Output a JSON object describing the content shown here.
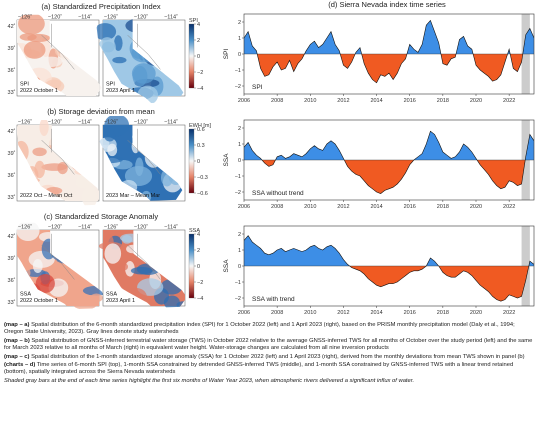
{
  "maps": {
    "a": {
      "title": "(a) Standardized Precipitation Index",
      "left_label": [
        "SPI",
        "2022 October 1"
      ],
      "right_label": [
        "SPI",
        "2023 April 1"
      ],
      "colorbar": {
        "title": "SPI",
        "ticks": [
          "4",
          "2",
          "0",
          "−2",
          "−4"
        ]
      }
    },
    "b": {
      "title": "(b) Storage deviation from mean",
      "left_label": [
        "2022 Oct – Mean Oct"
      ],
      "right_label": [
        "2023 Mar – Mean Mar"
      ],
      "colorbar": {
        "title": "EWH [m]",
        "ticks": [
          "0.6",
          "0.3",
          "0",
          "−0.3",
          "−0.6"
        ]
      }
    },
    "c": {
      "title": "(c) Standardized Storage Anomaly",
      "left_label": [
        "SSA",
        "2022 October 1"
      ],
      "right_label": [
        "SSA",
        "2023 April 1"
      ],
      "colorbar": {
        "title": "SSA",
        "ticks": [
          "4",
          "2",
          "0",
          "−2",
          "−4"
        ]
      }
    },
    "lon_ticks": [
      "−126˚",
      "−120˚",
      "−114˚"
    ],
    "lat_ticks": [
      "42˚",
      "39˚",
      "36˚",
      "33˚"
    ]
  },
  "timeseries_title": "(d) Sierra Nevada index time series",
  "chart_data": [
    {
      "type": "area",
      "label": "SPI",
      "ylabel": "SPI",
      "x_range": [
        2006,
        2023.5
      ],
      "ylim": [
        -2.5,
        2.5
      ],
      "yticks": [
        2,
        1,
        0,
        -1,
        -2
      ],
      "x_ticks": [
        "2006",
        "2008",
        "2010",
        "2012",
        "2014",
        "2016",
        "2018",
        "2020",
        "2022"
      ],
      "shaded_period": [
        2022.75,
        2023.25
      ],
      "x": [
        2006.0,
        2006.25,
        2006.5,
        2006.75,
        2007.0,
        2007.25,
        2007.5,
        2007.75,
        2008.0,
        2008.25,
        2008.5,
        2008.75,
        2009.0,
        2009.25,
        2009.5,
        2009.75,
        2010.0,
        2010.25,
        2010.5,
        2010.75,
        2011.0,
        2011.25,
        2011.5,
        2011.75,
        2012.0,
        2012.25,
        2012.5,
        2012.75,
        2013.0,
        2013.25,
        2013.5,
        2013.75,
        2014.0,
        2014.25,
        2014.5,
        2014.75,
        2015.0,
        2015.25,
        2015.5,
        2015.75,
        2016.0,
        2016.25,
        2016.5,
        2016.75,
        2017.0,
        2017.25,
        2017.5,
        2017.75,
        2018.0,
        2018.25,
        2018.5,
        2018.75,
        2019.0,
        2019.25,
        2019.5,
        2019.75,
        2020.0,
        2020.25,
        2020.5,
        2020.75,
        2021.0,
        2021.25,
        2021.5,
        2021.75,
        2022.0,
        2022.25,
        2022.5,
        2022.75,
        2023.0,
        2023.25,
        2023.5
      ],
      "y": [
        1.0,
        1.4,
        0.5,
        0.2,
        -0.9,
        -1.4,
        -1.3,
        -0.8,
        -0.5,
        -1.0,
        -0.9,
        -0.4,
        -1.1,
        -0.6,
        -0.3,
        0.2,
        0.6,
        0.8,
        0.4,
        0.6,
        1.0,
        1.4,
        0.6,
        0.2,
        -0.7,
        -0.9,
        -0.5,
        0.1,
        0.4,
        -0.6,
        -1.2,
        -1.6,
        -1.8,
        -1.3,
        -1.4,
        -1.2,
        -1.6,
        -1.2,
        -0.6,
        -0.3,
        0.6,
        0.3,
        0.1,
        0.6,
        1.8,
        2.1,
        1.4,
        0.7,
        -0.6,
        -0.7,
        -0.3,
        -0.2,
        0.9,
        1.1,
        0.5,
        0.3,
        -0.7,
        -1.0,
        -1.2,
        -1.4,
        -1.7,
        -1.6,
        -1.3,
        -0.5,
        0.3,
        -0.9,
        -1.1,
        -0.5,
        1.2,
        1.6,
        1.0
      ]
    },
    {
      "type": "area",
      "label": "SSA without trend",
      "ylabel": "SSA",
      "x_range": [
        2006,
        2023.5
      ],
      "ylim": [
        -2.5,
        2.5
      ],
      "yticks": [
        2,
        1,
        0,
        -1,
        -2
      ],
      "x_ticks": [
        "2006",
        "2008",
        "2010",
        "2012",
        "2014",
        "2016",
        "2018",
        "2020",
        "2022"
      ],
      "shaded_period": [
        2022.75,
        2023.25
      ],
      "x": [
        2006.0,
        2006.25,
        2006.5,
        2006.75,
        2007.0,
        2007.25,
        2007.5,
        2007.75,
        2008.0,
        2008.25,
        2008.5,
        2008.75,
        2009.0,
        2009.25,
        2009.5,
        2009.75,
        2010.0,
        2010.25,
        2010.5,
        2010.75,
        2011.0,
        2011.25,
        2011.5,
        2011.75,
        2012.0,
        2012.25,
        2012.5,
        2012.75,
        2013.0,
        2013.25,
        2013.5,
        2013.75,
        2014.0,
        2014.25,
        2014.5,
        2014.75,
        2015.0,
        2015.25,
        2015.5,
        2015.75,
        2016.0,
        2016.25,
        2016.5,
        2016.75,
        2017.0,
        2017.25,
        2017.5,
        2017.75,
        2018.0,
        2018.25,
        2018.5,
        2018.75,
        2019.0,
        2019.25,
        2019.5,
        2019.75,
        2020.0,
        2020.25,
        2020.5,
        2020.75,
        2021.0,
        2021.25,
        2021.5,
        2021.75,
        2022.0,
        2022.25,
        2022.5,
        2022.75,
        2023.0,
        2023.25,
        2023.5
      ],
      "y": [
        0.8,
        1.1,
        0.6,
        0.3,
        0.1,
        -0.2,
        -0.4,
        -0.3,
        0.2,
        0.3,
        0.1,
        0.2,
        0.4,
        0.3,
        0.2,
        0.4,
        0.7,
        0.9,
        0.7,
        0.6,
        1.0,
        1.2,
        1.0,
        0.6,
        0.1,
        -0.4,
        -0.7,
        -0.9,
        -1.0,
        -1.3,
        -1.6,
        -1.8,
        -2.0,
        -2.1,
        -1.9,
        -1.8,
        -1.7,
        -1.5,
        -1.2,
        -0.8,
        -0.3,
        0.0,
        0.2,
        0.4,
        1.0,
        1.8,
        1.6,
        1.1,
        0.5,
        0.3,
        0.1,
        0.2,
        0.5,
        1.0,
        0.8,
        0.5,
        0.1,
        -0.3,
        -0.6,
        -0.9,
        -1.3,
        -1.6,
        -1.8,
        -1.7,
        -1.3,
        -1.4,
        -1.6,
        -1.5,
        0.2,
        1.6,
        1.2
      ]
    },
    {
      "type": "area",
      "label": "SSA with trend",
      "ylabel": "SSA",
      "x_range": [
        2006,
        2023.5
      ],
      "ylim": [
        -2.5,
        2.5
      ],
      "yticks": [
        2,
        1,
        0,
        -1,
        -2
      ],
      "x_ticks": [
        "2006",
        "2008",
        "2010",
        "2012",
        "2014",
        "2016",
        "2018",
        "2020",
        "2022"
      ],
      "shaded_period": [
        2022.75,
        2023.25
      ],
      "x": [
        2006.0,
        2006.25,
        2006.5,
        2006.75,
        2007.0,
        2007.25,
        2007.5,
        2007.75,
        2008.0,
        2008.25,
        2008.5,
        2008.75,
        2009.0,
        2009.25,
        2009.5,
        2009.75,
        2010.0,
        2010.25,
        2010.5,
        2010.75,
        2011.0,
        2011.25,
        2011.5,
        2011.75,
        2012.0,
        2012.25,
        2012.5,
        2012.75,
        2013.0,
        2013.25,
        2013.5,
        2013.75,
        2014.0,
        2014.25,
        2014.5,
        2014.75,
        2015.0,
        2015.25,
        2015.5,
        2015.75,
        2016.0,
        2016.25,
        2016.5,
        2016.75,
        2017.0,
        2017.25,
        2017.5,
        2017.75,
        2018.0,
        2018.25,
        2018.5,
        2018.75,
        2019.0,
        2019.25,
        2019.5,
        2019.75,
        2020.0,
        2020.25,
        2020.5,
        2020.75,
        2021.0,
        2021.25,
        2021.5,
        2021.75,
        2022.0,
        2022.25,
        2022.5,
        2022.75,
        2023.0,
        2023.25,
        2023.5
      ],
      "y": [
        1.6,
        1.9,
        1.5,
        1.3,
        1.1,
        0.8,
        0.7,
        0.8,
        1.0,
        1.1,
        0.9,
        1.0,
        1.1,
        1.0,
        0.9,
        1.0,
        1.2,
        1.3,
        1.1,
        1.0,
        1.2,
        1.3,
        1.1,
        0.8,
        0.4,
        0.1,
        -0.1,
        -0.2,
        -0.3,
        -0.5,
        -0.8,
        -1.0,
        -1.2,
        -1.3,
        -1.2,
        -1.1,
        -1.1,
        -1.0,
        -0.8,
        -0.6,
        -0.4,
        -0.3,
        -0.3,
        -0.2,
        0.0,
        0.5,
        0.3,
        0.0,
        -0.4,
        -0.6,
        -0.7,
        -0.7,
        -0.5,
        -0.3,
        -0.4,
        -0.6,
        -0.9,
        -1.2,
        -1.4,
        -1.6,
        -1.9,
        -2.1,
        -2.2,
        -2.1,
        -1.8,
        -1.9,
        -2.0,
        -1.9,
        -0.9,
        0.3,
        0.1
      ]
    }
  ],
  "caption": [
    {
      "head": "(map – a)",
      "text": " Spatial distribution of the 6-month standardized precipitation index (SPI) for 1 October 2022 (left) and 1 April 2023 (right), based on the PRISM monthly precipitation model (Daly et al., 1994; Oregon State University, 2023). Gray lines denote study watersheds"
    },
    {
      "head": "(map – b)",
      "text": " Spatial distribution of GNSS-inferred terrestrial water storage (TWS) in October 2022 relative to the average GNSS-inferred TWS for all months of October over the study period (left) and the same for March 2023 relative to all months of March (right) in equivalent water height. Water-storage changes are calculated from all nine inversion products"
    },
    {
      "head": "(map – c)",
      "text": " Spatial distribution of the 1-month standardized storage anomaly (SSA) for 1 October 2022 (left) and 1 April 2023 (right), derived from the monthly deviations from mean TWS shown in panel (b)"
    },
    {
      "head": "(charts – d)",
      "text": " Time series of 6-month SPI (top), 1-month SSA constrained by detrended GNSS-inferred TWS (middle), and 1-month SSA constrained by GNSS-inferred TWS with a linear trend retained (bottom), spatially integrated across the Sierra Nevada watersheds"
    }
  ],
  "caption_note": "Shaded gray bars at the end of each time series highlight the first six months of Water Year 2023, when atmospheric rivers delivered a significant influx of water.",
  "colors": {
    "positive": "#3d8ee6",
    "negative": "#f05a22",
    "shade": "#cccccc"
  }
}
